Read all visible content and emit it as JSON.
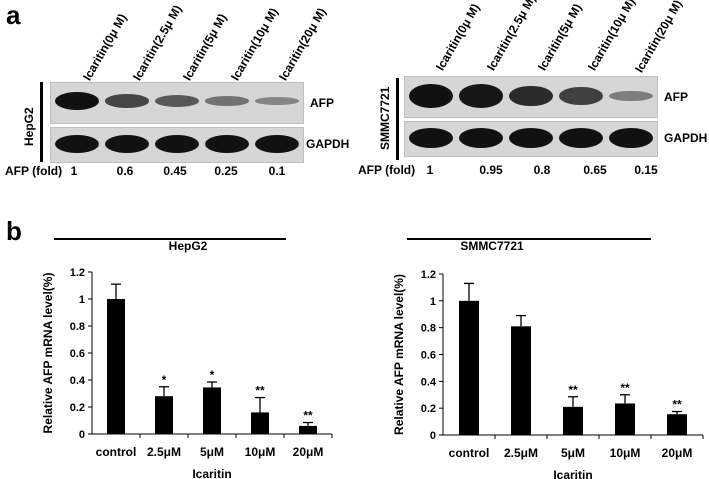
{
  "figure": {
    "panel_a_label": "a",
    "panel_b_label": "b"
  },
  "blots": [
    {
      "cell_line": "HepG2",
      "lanes": [
        "Icaritin(0μ M)",
        "Icaritin(2.5μ M)",
        "Icaritin(5μ M)",
        "Icaritin(10μ M)",
        "Icaritin(20μ M)"
      ],
      "proteins": [
        "AFP",
        "GAPDH"
      ],
      "fold_label": "AFP (fold)",
      "fold_values": [
        "1",
        "0.6",
        "0.45",
        "0.25",
        "0.1"
      ],
      "afp_intensity": [
        1,
        0.6,
        0.45,
        0.25,
        0.1
      ]
    },
    {
      "cell_line": "SMMC7721",
      "lanes": [
        "Icaritin(0μ M)",
        "Icaritin(2.5μ M)",
        "Icaritin(5μ M)",
        "Icaritin(10μ M)",
        "Icaritin(20μ M)"
      ],
      "proteins": [
        "AFP",
        "GAPDH"
      ],
      "fold_label": "AFP (fold)",
      "fold_values": [
        "1",
        "0.95",
        "0.8",
        "0.65",
        "0.15"
      ],
      "afp_intensity": [
        1,
        0.95,
        0.8,
        0.65,
        0.15
      ]
    }
  ],
  "chart_data": [
    {
      "type": "bar",
      "title": "HepG2",
      "xlabel": "Icaritin",
      "ylabel": "Relative AFP mRNA level(%)",
      "categories": [
        "control",
        "2.5μM",
        "5μM",
        "10μM",
        "20μM"
      ],
      "values": [
        1.0,
        0.28,
        0.345,
        0.16,
        0.06
      ],
      "errors": [
        0.11,
        0.07,
        0.04,
        0.11,
        0.025
      ],
      "significance": [
        "",
        "*",
        "*",
        "**",
        "**"
      ],
      "ylim": [
        0,
        1.2
      ],
      "yticks": [
        "0",
        "0.2",
        "0.4",
        "0.6",
        "0.8",
        "1",
        "1.2"
      ],
      "bar_color": "#000000"
    },
    {
      "type": "bar",
      "title": "SMMC7721",
      "xlabel": "Icaritin",
      "ylabel": "Relative AFP mRNA level(%)",
      "categories": [
        "control",
        "2.5μM",
        "5μM",
        "10μM",
        "20μM"
      ],
      "values": [
        1.0,
        0.81,
        0.21,
        0.235,
        0.155
      ],
      "errors": [
        0.13,
        0.08,
        0.075,
        0.065,
        0.02
      ],
      "significance": [
        "",
        "",
        "**",
        "**",
        "**"
      ],
      "ylim": [
        0,
        1.2
      ],
      "yticks": [
        "0",
        "0.2",
        "0.4",
        "0.6",
        "0.8",
        "1",
        "1.2"
      ],
      "bar_color": "#000000"
    }
  ]
}
